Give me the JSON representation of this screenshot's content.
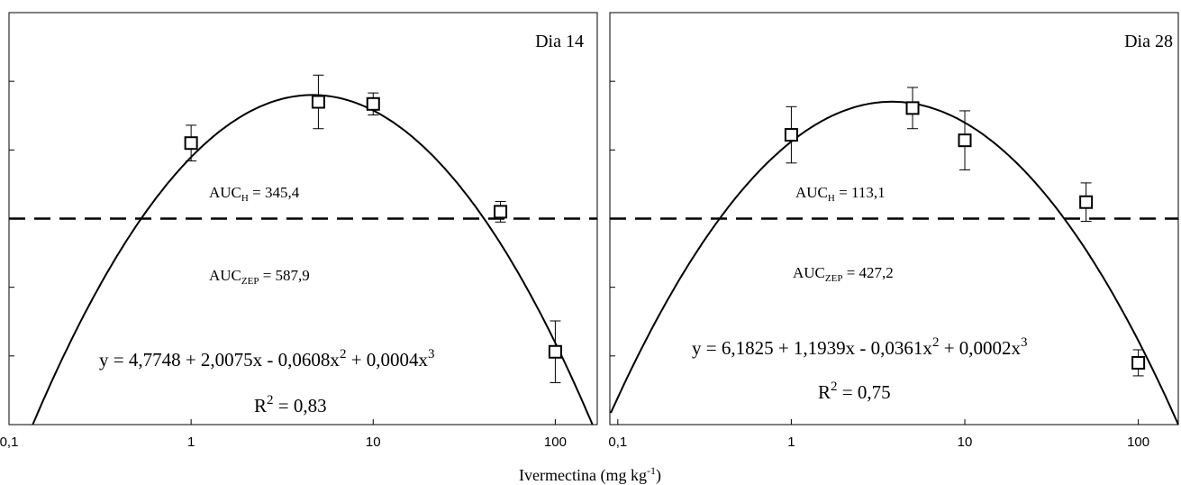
{
  "xlabel": "Ivermectina (mg kg",
  "xlabel_sup": "-1",
  "xlabel_close": ")",
  "panels": [
    {
      "label": "Dia 14",
      "auc_h": {
        "base": "AUC",
        "sub": "H",
        "rest": " = 345,4"
      },
      "auc_zep": {
        "base": "AUC",
        "sub": "ZEP",
        "rest": " = 587,9"
      },
      "equation": {
        "p1": "y = 4,7748 + 2,0075x - 0,0608x",
        "sup1": "2",
        "p2": " + 0,0004x",
        "sup2": "3"
      },
      "r2": {
        "base": "R",
        "sup": "2",
        "rest": " = 0,83"
      }
    },
    {
      "label": "Dia 28",
      "auc_h": {
        "base": "AUC",
        "sub": "H",
        "rest": " = 113,1"
      },
      "auc_zep": {
        "base": "AUC",
        "sub": "ZEP",
        "rest": " = 427,2"
      },
      "equation": {
        "p1": "y = 6,1825 + 1,1939x - 0,0361x",
        "sup1": "2",
        "p2": " + 0,0002x",
        "sup2": "3"
      },
      "r2": {
        "base": "R",
        "sup": "2",
        "rest": " = 0,75"
      }
    }
  ],
  "chart_data": [
    {
      "type": "scatter",
      "title": "Dia 14",
      "xlabel": "Ivermectina (mg kg-1)",
      "ylabel": "",
      "x_scale": "log",
      "xlim": [
        0.1,
        170
      ],
      "ylim": [
        0,
        6
      ],
      "x_tick_labels": [
        "0,1",
        "1",
        "10",
        "100"
      ],
      "y_tick_count": 7,
      "grid": false,
      "reference_line": {
        "y": 3,
        "style": "dashed"
      },
      "series": [
        {
          "x": [
            1,
            5,
            10,
            50,
            100
          ],
          "y": [
            4.1,
            4.7,
            4.67,
            3.1,
            1.06
          ],
          "err": [
            0.26,
            0.39,
            0.16,
            0.15,
            0.45
          ]
        }
      ],
      "fit": {
        "peak": {
          "x": 4.8,
          "y": 4.8
        },
        "zero_crossings": [
          0.135,
          160
        ]
      }
    },
    {
      "type": "scatter",
      "title": "Dia 28",
      "xlabel": "Ivermectina (mg kg-1)",
      "ylabel": "",
      "x_scale": "log",
      "xlim": [
        0.09,
        170
      ],
      "ylim": [
        0,
        6
      ],
      "x_tick_labels": [
        "0,1",
        "1",
        "10",
        "100"
      ],
      "y_tick_count": 7,
      "grid": false,
      "reference_line": {
        "y": 3,
        "style": "dashed"
      },
      "series": [
        {
          "x": [
            1,
            5,
            10,
            50,
            100
          ],
          "y": [
            4.22,
            4.61,
            4.14,
            3.24,
            0.9
          ],
          "err": [
            0.41,
            0.3,
            0.43,
            0.28,
            0.19
          ]
        }
      ],
      "fit": {
        "peak": {
          "x": 3.5,
          "y": 4.7
        },
        "zero_crossings": [
          0.085,
          170
        ]
      }
    }
  ]
}
